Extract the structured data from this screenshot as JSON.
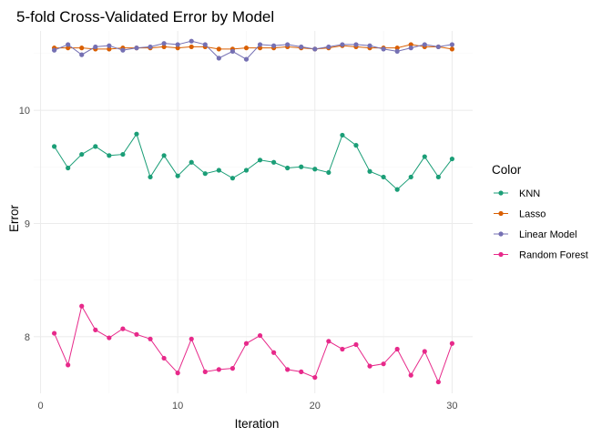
{
  "chart_data": {
    "type": "line",
    "title": "5-fold Cross-Validated Error by Model",
    "xlabel": "Iteration",
    "ylabel": "Error",
    "xlim": [
      -0.5,
      31.5
    ],
    "ylim": [
      7.5,
      10.7
    ],
    "x_ticks": [
      0,
      10,
      20,
      30
    ],
    "y_ticks": [
      8,
      9,
      10
    ],
    "grid": true,
    "legend_title": "Color",
    "legend_position": "right",
    "x": [
      1,
      2,
      3,
      4,
      5,
      6,
      7,
      8,
      9,
      10,
      11,
      12,
      13,
      14,
      15,
      16,
      17,
      18,
      19,
      20,
      21,
      22,
      23,
      24,
      25,
      26,
      27,
      28,
      29,
      30
    ],
    "series": [
      {
        "name": "KNN",
        "color": "#1b9e77",
        "values": [
          9.68,
          9.49,
          9.61,
          9.68,
          9.6,
          9.61,
          9.79,
          9.41,
          9.6,
          9.42,
          9.54,
          9.44,
          9.47,
          9.4,
          9.47,
          9.56,
          9.54,
          9.49,
          9.5,
          9.48,
          9.45,
          9.78,
          9.69,
          9.46,
          9.41,
          9.3,
          9.41,
          9.59,
          9.41,
          9.57
        ]
      },
      {
        "name": "Lasso",
        "color": "#d95f02",
        "values": [
          10.55,
          10.55,
          10.55,
          10.54,
          10.54,
          10.55,
          10.55,
          10.55,
          10.56,
          10.55,
          10.56,
          10.56,
          10.54,
          10.54,
          10.55,
          10.55,
          10.55,
          10.56,
          10.55,
          10.54,
          10.55,
          10.57,
          10.56,
          10.55,
          10.55,
          10.55,
          10.58,
          10.56,
          10.56,
          10.54
        ]
      },
      {
        "name": "Linear Model",
        "color": "#7570b3",
        "values": [
          10.53,
          10.58,
          10.49,
          10.56,
          10.57,
          10.53,
          10.55,
          10.56,
          10.59,
          10.58,
          10.61,
          10.58,
          10.46,
          10.52,
          10.45,
          10.58,
          10.57,
          10.58,
          10.56,
          10.54,
          10.56,
          10.58,
          10.58,
          10.57,
          10.54,
          10.52,
          10.55,
          10.58,
          10.56,
          10.58
        ]
      },
      {
        "name": "Random Forest",
        "color": "#e7298a",
        "values": [
          8.03,
          7.75,
          8.27,
          8.06,
          7.99,
          8.07,
          8.02,
          7.98,
          7.81,
          7.68,
          7.98,
          7.69,
          7.71,
          7.72,
          7.94,
          8.01,
          7.86,
          7.71,
          7.69,
          7.64,
          7.96,
          7.89,
          7.93,
          7.74,
          7.76,
          7.89,
          7.66,
          7.87,
          7.6,
          7.94
        ]
      }
    ]
  }
}
